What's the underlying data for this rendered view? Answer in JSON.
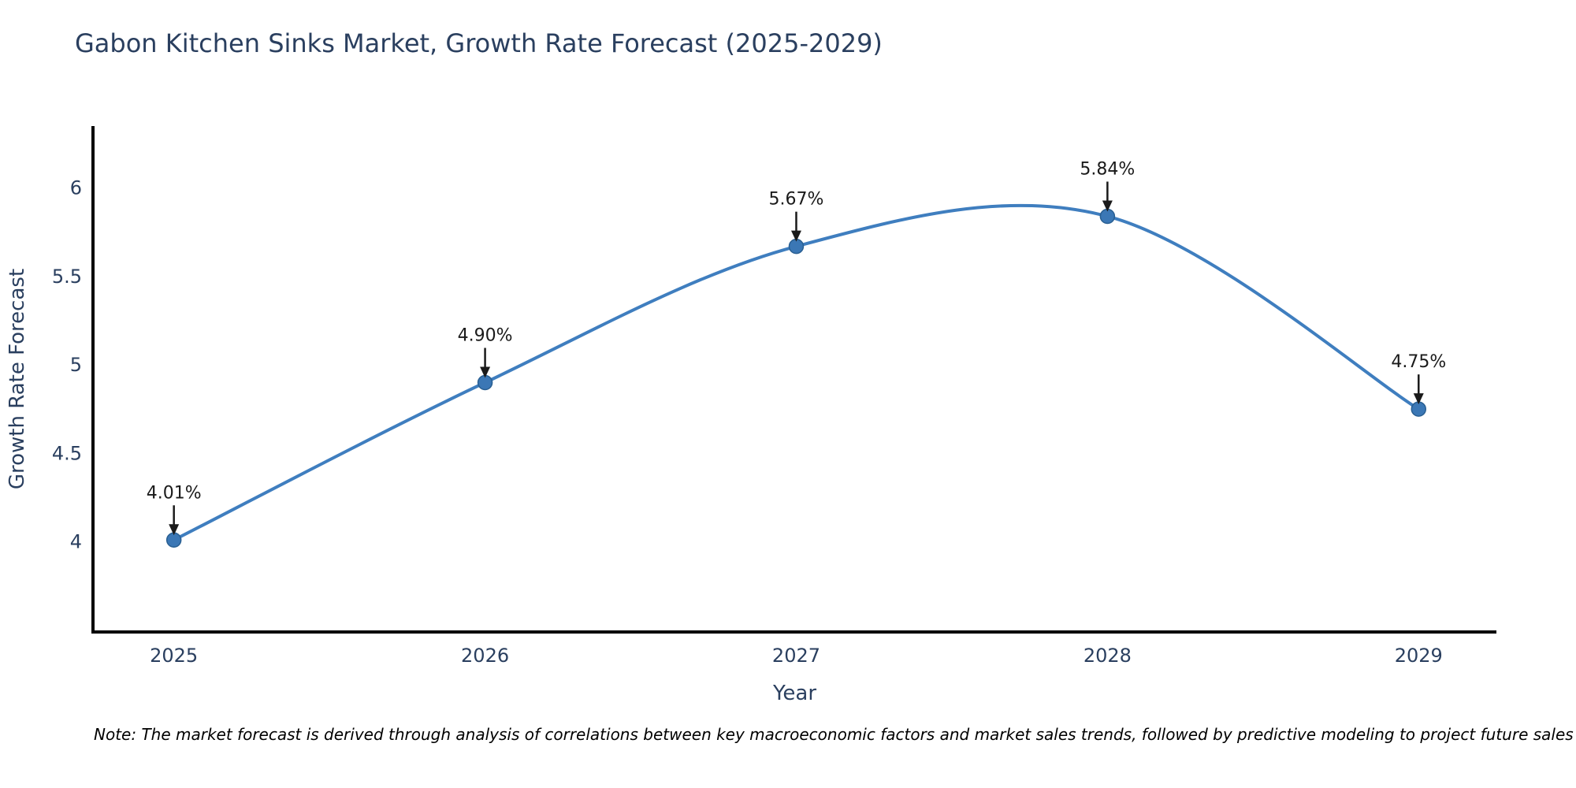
{
  "chart_data": {
    "type": "line",
    "title": "Gabon Kitchen Sinks Market, Growth Rate Forecast (2025-2029)",
    "xlabel": "Year",
    "ylabel": "Growth Rate Forecast",
    "x": [
      2025,
      2026,
      2027,
      2028,
      2029
    ],
    "series": [
      {
        "name": "Growth Rate Forecast",
        "values": [
          4.01,
          4.9,
          5.67,
          5.84,
          4.75
        ]
      }
    ],
    "point_labels": [
      "4.01%",
      "4.90%",
      "5.67%",
      "5.84%",
      "4.75%"
    ],
    "xtick_labels": [
      "2025",
      "2026",
      "2027",
      "2028",
      "2029"
    ],
    "ytick_values": [
      4,
      4.5,
      5,
      5.5,
      6
    ],
    "ytick_labels": [
      "4",
      "4.5",
      "5",
      "5.5",
      "6"
    ],
    "xlim": [
      2024.74,
      2029.25
    ],
    "ylim": [
      3.49,
      6.35
    ],
    "line_shape": "spline",
    "grid": false,
    "legend_position": "none",
    "note": "Note: The market forecast is derived through analysis of correlations between key macroeconomic factors and market sales trends, followed by predictive modeling to project future sales",
    "colors": {
      "line": "#3f7ebf",
      "marker": "#3b77b5",
      "marker_edge": "#295f92",
      "axis": "#000000",
      "text": "#2a3f5f",
      "annotation": "#1a1a1a",
      "background": "#ffffff"
    }
  }
}
